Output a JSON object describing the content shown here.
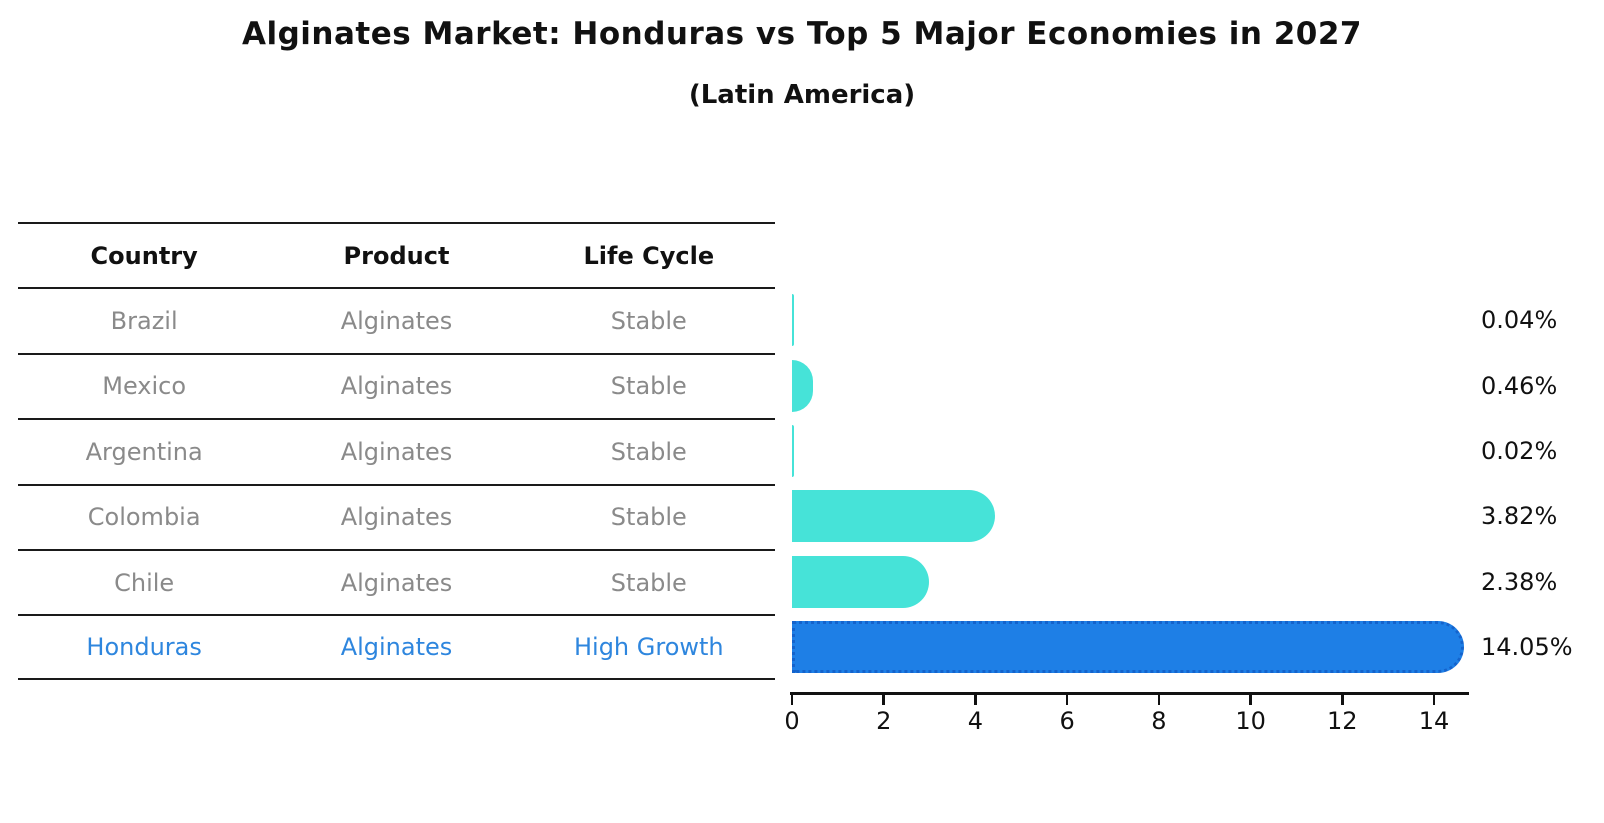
{
  "title": "Alginates Market: Honduras vs Top 5 Major Economies in 2027",
  "subtitle": "(Latin America)",
  "colors": {
    "bar_default": "#46e3d8",
    "bar_highlight": "#1e7fe6",
    "bar_highlight_edge": "#1463cc",
    "highlight_text": "#2e86de",
    "row_text": "#8a8a8a",
    "header_text": "#111111",
    "axis": "#111111",
    "background": "#ffffff"
  },
  "table": {
    "headers": [
      "Country",
      "Product",
      "Life Cycle"
    ],
    "rows": [
      {
        "country": "Brazil",
        "product": "Alginates",
        "life_cycle": "Stable",
        "highlight": false
      },
      {
        "country": "Mexico",
        "product": "Alginates",
        "life_cycle": "Stable",
        "highlight": false
      },
      {
        "country": "Argentina",
        "product": "Alginates",
        "life_cycle": "Stable",
        "highlight": false
      },
      {
        "country": "Colombia",
        "product": "Alginates",
        "life_cycle": "Stable",
        "highlight": false
      },
      {
        "country": "Chile",
        "product": "Alginates",
        "life_cycle": "Stable",
        "highlight": false
      },
      {
        "country": "Honduras",
        "product": "Alginates",
        "life_cycle": "High Growth",
        "highlight": true
      }
    ]
  },
  "chart_data": {
    "type": "bar",
    "orientation": "horizontal",
    "title": "Alginates Market: Honduras vs Top 5 Major Economies in 2027 (Latin America)",
    "categories": [
      "Brazil",
      "Mexico",
      "Argentina",
      "Colombia",
      "Chile",
      "Honduras"
    ],
    "values": [
      0.04,
      0.46,
      0.02,
      3.82,
      2.38,
      14.05
    ],
    "value_labels": [
      "0.04%",
      "0.46%",
      "0.02%",
      "3.82%",
      "2.38%",
      "14.05%"
    ],
    "unit": "%",
    "highlight_index": 5,
    "x_ticks": [
      0,
      2,
      4,
      6,
      8,
      10,
      12,
      14
    ],
    "xlim": [
      0,
      14.75
    ],
    "xlabel": "",
    "ylabel": "",
    "grid": false,
    "legend": false
  }
}
